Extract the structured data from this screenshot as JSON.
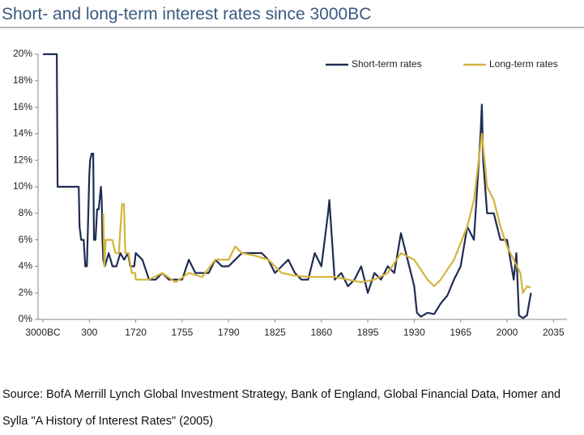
{
  "chart_data": {
    "type": "line",
    "title": "Short- and long-term interest rates since 3000BC",
    "source": "Source: BofA Merrill Lynch Global Investment Strategy, Bank of England, Global Financial Data, Homer and Sylla \"A History of Interest Rates\" (2005)",
    "legend": "top-right",
    "xlim": [
      -3000,
      2035
    ],
    "ylim": [
      0,
      20
    ],
    "xticks": [
      {
        "value": -3000,
        "label": "3000BC"
      },
      300,
      1720,
      1755,
      1790,
      1825,
      1860,
      1895,
      1930,
      1965,
      2000,
      2035
    ],
    "yticks": [
      {
        "value": 0,
        "label": "0%"
      },
      {
        "value": 2,
        "label": "2%"
      },
      {
        "value": 4,
        "label": "4%"
      },
      {
        "value": 6,
        "label": "6%"
      },
      {
        "value": 8,
        "label": "8%"
      },
      {
        "value": 10,
        "label": "10%"
      },
      {
        "value": 12,
        "label": "12%"
      },
      {
        "value": 14,
        "label": "14%"
      },
      {
        "value": 16,
        "label": "16%"
      },
      {
        "value": 18,
        "label": "18%"
      },
      {
        "value": 20,
        "label": "20%"
      }
    ],
    "series": [
      {
        "name": "Short-term rates",
        "color": "#1f2d54",
        "x": [
          -3000,
          -2016,
          -1958,
          -453,
          -395,
          -279,
          -105,
          11,
          126,
          300,
          324,
          371,
          418,
          442,
          489,
          537,
          584,
          655,
          679,
          702,
          726,
          773,
          892,
          1010,
          1128,
          1247,
          1365,
          1483,
          1554,
          1673,
          1720,
          1725,
          1730,
          1735,
          1740,
          1745,
          1750,
          1755,
          1760,
          1765,
          1770,
          1775,
          1780,
          1785,
          1790,
          1795,
          1800,
          1805,
          1810,
          1815,
          1820,
          1825,
          1830,
          1835,
          1840,
          1845,
          1850,
          1855,
          1860,
          1865,
          1866,
          1870,
          1875,
          1880,
          1885,
          1890,
          1895,
          1900,
          1905,
          1910,
          1915,
          1920,
          1925,
          1930,
          1932,
          1935,
          1940,
          1945,
          1950,
          1955,
          1960,
          1965,
          1970,
          1975,
          1980,
          1981,
          1982,
          1985,
          1990,
          1995,
          2000,
          2005,
          2007,
          2009,
          2012,
          2015,
          2018
        ],
        "values": [
          20,
          20,
          10,
          10,
          7,
          6,
          6,
          4,
          4,
          11,
          12,
          12.5,
          12.5,
          6,
          6,
          8.3,
          8.3,
          10,
          9,
          6,
          4.5,
          4,
          5,
          4,
          4,
          5,
          4.5,
          5,
          4,
          4,
          5,
          4.5,
          3,
          3,
          3.5,
          3,
          3,
          3,
          4.5,
          3.5,
          3.5,
          3.5,
          4.5,
          4,
          4,
          4.5,
          5,
          5,
          5,
          5,
          4.5,
          3.5,
          4,
          4.5,
          3.5,
          3,
          3,
          5,
          4,
          8,
          9,
          3,
          3.5,
          2.5,
          3,
          4,
          2,
          3.5,
          3,
          4,
          3.5,
          6.5,
          4.5,
          2.5,
          0.5,
          0.2,
          0.5,
          0.4,
          1.2,
          1.8,
          3,
          4,
          7,
          6,
          14,
          16.2,
          12,
          8,
          8,
          6,
          6,
          3,
          5,
          0.3,
          0.1,
          0.3,
          2
        ]
      },
      {
        "name": "Long-term rates",
        "color": "#d4b43a",
        "x": [
          726,
          760,
          800,
          900,
          1000,
          1100,
          1200,
          1300,
          1360,
          1400,
          1500,
          1600,
          1700,
          1720,
          1730,
          1740,
          1750,
          1760,
          1770,
          1780,
          1790,
          1795,
          1800,
          1810,
          1820,
          1830,
          1840,
          1850,
          1860,
          1870,
          1880,
          1890,
          1900,
          1910,
          1920,
          1930,
          1940,
          1945,
          1950,
          1960,
          1970,
          1975,
          1981,
          1985,
          1990,
          1995,
          2000,
          2005,
          2010,
          2012,
          2015,
          2018
        ],
        "values": [
          8,
          4,
          6,
          6,
          6,
          5,
          5,
          8.7,
          8.7,
          5,
          5,
          3.5,
          3.5,
          3,
          3,
          3.5,
          2.8,
          3.5,
          3.2,
          4.5,
          4.5,
          5.5,
          5,
          4.8,
          4.5,
          3.5,
          3.3,
          3.2,
          3.2,
          3.2,
          3,
          2.8,
          3,
          3.5,
          5,
          4.5,
          3,
          2.5,
          3,
          4.5,
          7,
          9,
          14,
          10,
          9,
          7,
          5.5,
          4.5,
          3.5,
          2,
          2.5,
          2.4
        ]
      }
    ]
  }
}
